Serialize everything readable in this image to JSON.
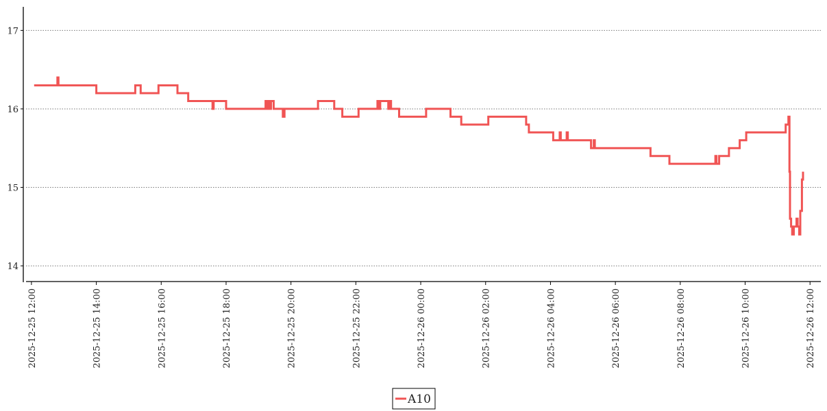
{
  "chart_data": {
    "type": "line",
    "title": "",
    "xlabel": "",
    "ylabel": "",
    "ylim": [
      13.8,
      17.3
    ],
    "xlim": [
      "2025-12-25 11:50",
      "2025-12-26 12:20"
    ],
    "y_ticks": [
      "14",
      "15",
      "16",
      "17"
    ],
    "x_ticks": [
      "2025-12-25 12:00",
      "2025-12-25 14:00",
      "2025-12-25 16:00",
      "2025-12-25 18:00",
      "2025-12-25 20:00",
      "2025-12-25 22:00",
      "2025-12-26 00:00",
      "2025-12-26 02:00",
      "2025-12-26 04:00",
      "2025-12-26 06:00",
      "2025-12-26 08:00",
      "2025-12-26 10:00",
      "2025-12-26 12:00"
    ],
    "grid": "horizontal dotted",
    "legend_position": "bottom-center",
    "series": [
      {
        "name": "A10",
        "color": "#f05454",
        "step": true,
        "points": [
          [
            "2025-12-25 12:05",
            16.3
          ],
          [
            "2025-12-25 12:47",
            16.3
          ],
          [
            "2025-12-25 12:48",
            16.4
          ],
          [
            "2025-12-25 12:50",
            16.3
          ],
          [
            "2025-12-25 14:00",
            16.2
          ],
          [
            "2025-12-25 15:12",
            16.3
          ],
          [
            "2025-12-25 15:22",
            16.2
          ],
          [
            "2025-12-25 15:55",
            16.3
          ],
          [
            "2025-12-25 16:30",
            16.2
          ],
          [
            "2025-12-25 16:50",
            16.1
          ],
          [
            "2025-12-25 17:35",
            16.0
          ],
          [
            "2025-12-25 17:37",
            16.1
          ],
          [
            "2025-12-25 18:00",
            16.0
          ],
          [
            "2025-12-25 19:13",
            16.1
          ],
          [
            "2025-12-25 19:15",
            16.0
          ],
          [
            "2025-12-25 19:18",
            16.1
          ],
          [
            "2025-12-25 19:20",
            16.0
          ],
          [
            "2025-12-25 19:23",
            16.1
          ],
          [
            "2025-12-25 19:28",
            16.0
          ],
          [
            "2025-12-25 19:45",
            15.9
          ],
          [
            "2025-12-25 19:48",
            16.0
          ],
          [
            "2025-12-25 20:50",
            16.1
          ],
          [
            "2025-12-25 21:20",
            16.0
          ],
          [
            "2025-12-25 21:35",
            15.9
          ],
          [
            "2025-12-25 22:05",
            16.0
          ],
          [
            "2025-12-25 22:40",
            16.1
          ],
          [
            "2025-12-25 22:43",
            16.0
          ],
          [
            "2025-12-25 22:45",
            16.1
          ],
          [
            "2025-12-25 23:00",
            16.0
          ],
          [
            "2025-12-25 23:02",
            16.1
          ],
          [
            "2025-12-25 23:05",
            16.0
          ],
          [
            "2025-12-25 23:20",
            15.9
          ],
          [
            "2025-12-26 00:10",
            16.0
          ],
          [
            "2025-12-26 00:55",
            15.9
          ],
          [
            "2025-12-26 01:15",
            15.8
          ],
          [
            "2025-12-26 02:05",
            15.9
          ],
          [
            "2025-12-26 03:15",
            15.8
          ],
          [
            "2025-12-26 03:20",
            15.7
          ],
          [
            "2025-12-26 04:05",
            15.6
          ],
          [
            "2025-12-26 04:17",
            15.7
          ],
          [
            "2025-12-26 04:19",
            15.6
          ],
          [
            "2025-12-26 04:30",
            15.7
          ],
          [
            "2025-12-26 04:32",
            15.6
          ],
          [
            "2025-12-26 05:15",
            15.5
          ],
          [
            "2025-12-26 05:20",
            15.6
          ],
          [
            "2025-12-26 05:22",
            15.5
          ],
          [
            "2025-12-26 07:05",
            15.4
          ],
          [
            "2025-12-26 07:40",
            15.3
          ],
          [
            "2025-12-26 09:05",
            15.4
          ],
          [
            "2025-12-26 09:07",
            15.3
          ],
          [
            "2025-12-26 09:12",
            15.4
          ],
          [
            "2025-12-26 09:30",
            15.5
          ],
          [
            "2025-12-26 09:50",
            15.6
          ],
          [
            "2025-12-26 10:02",
            15.7
          ],
          [
            "2025-12-26 11:15",
            15.8
          ],
          [
            "2025-12-26 11:20",
            15.9
          ],
          [
            "2025-12-26 11:22",
            15.2
          ],
          [
            "2025-12-26 11:23",
            14.6
          ],
          [
            "2025-12-26 11:25",
            14.5
          ],
          [
            "2025-12-26 11:27",
            14.4
          ],
          [
            "2025-12-26 11:30",
            14.5
          ],
          [
            "2025-12-26 11:35",
            14.6
          ],
          [
            "2025-12-26 11:37",
            14.5
          ],
          [
            "2025-12-26 11:40",
            14.4
          ],
          [
            "2025-12-26 11:42",
            14.7
          ],
          [
            "2025-12-26 11:45",
            15.1
          ],
          [
            "2025-12-26 11:47",
            15.2
          ]
        ]
      }
    ]
  }
}
